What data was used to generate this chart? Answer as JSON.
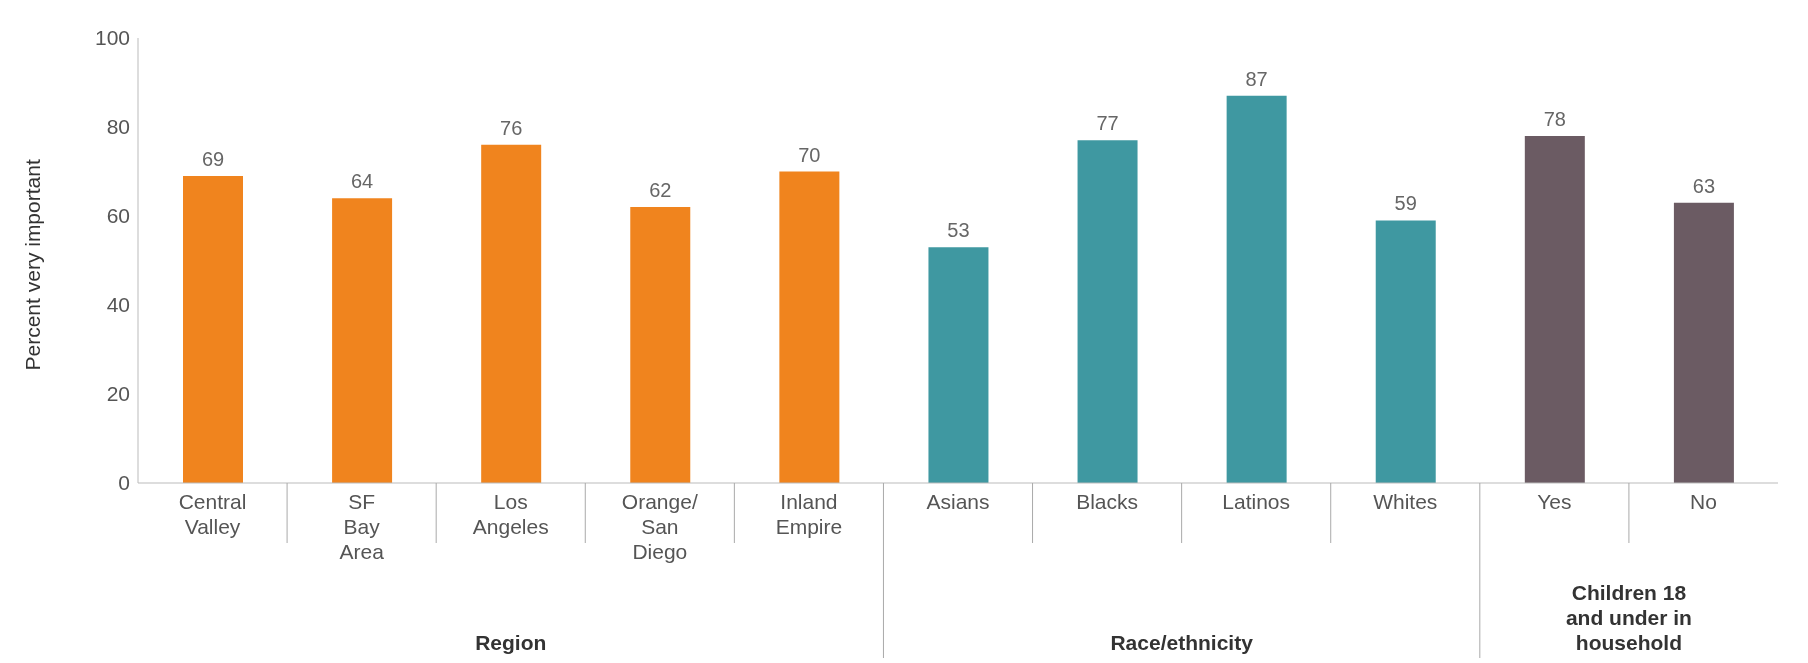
{
  "chart_data": {
    "type": "bar",
    "ylabel": "Percent very important",
    "categories": [
      "Central Valley",
      "SF Bay Area",
      "Los Angeles",
      "Orange/San Diego",
      "Inland Empire",
      "Asians",
      "Blacks",
      "Latinos",
      "Whites",
      "Yes",
      "No"
    ],
    "values": [
      69,
      64,
      76,
      62,
      70,
      53,
      77,
      87,
      59,
      78,
      63
    ],
    "colors": [
      "#f0841e",
      "#f0841e",
      "#f0841e",
      "#f0841e",
      "#f0841e",
      "#3f98a1",
      "#3f98a1",
      "#3f98a1",
      "#3f98a1",
      "#6b5b63",
      "#6b5b63"
    ],
    "annotations": [
      "Region",
      "Race/ethnicity",
      "Children 18 and under in household"
    ],
    "ylim": [
      0,
      100
    ],
    "yticks": [
      0,
      20,
      40,
      60,
      80,
      100
    ],
    "grid": false,
    "legend": false,
    "data_labels": true
  }
}
